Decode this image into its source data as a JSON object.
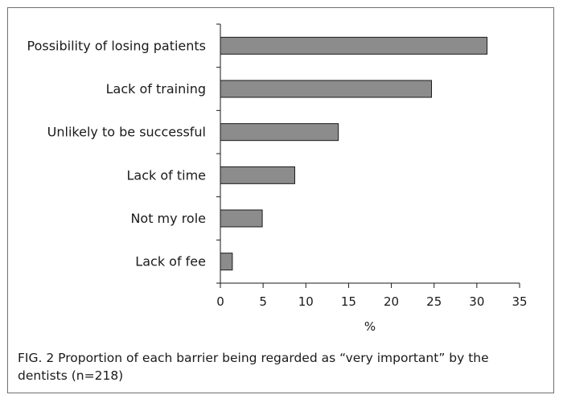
{
  "caption": "FIG. 2  Proportion of each barrier being regarded as “very important” by the dentists (n=218)",
  "chart_data": {
    "type": "bar",
    "orientation": "horizontal",
    "categories": [
      "Possibility of losing patients",
      "Lack of training",
      "Unlikely to be successful",
      "Lack of time",
      "Not my role",
      "Lack of fee"
    ],
    "values": [
      31.2,
      24.7,
      13.8,
      8.7,
      4.9,
      1.4
    ],
    "xlabel": "%",
    "ylabel": "",
    "xlim": [
      0,
      35
    ],
    "xticks": [
      0,
      5,
      10,
      15,
      20,
      25,
      30,
      35
    ],
    "grid": false,
    "bar_color": "#8c8c8c",
    "bar_edge_color": "#1a1a1a"
  }
}
